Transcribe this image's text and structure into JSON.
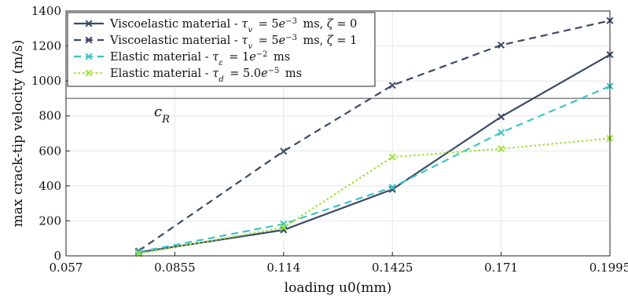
{
  "chart_data": {
    "type": "line",
    "xlabel": "loading u0(mm)",
    "ylabel": "max crack-tip velocity (m/s)",
    "xlim": [
      0.057,
      0.1995
    ],
    "ylim": [
      0,
      1400
    ],
    "xticks": [
      "0.057",
      "0.0855",
      "0.114",
      "0.1425",
      "0.171",
      "0.1995"
    ],
    "yticks": [
      "0",
      "200",
      "400",
      "600",
      "800",
      "1000",
      "1200",
      "1400"
    ],
    "grid": true,
    "legend_position": "top-left",
    "x": [
      0.076,
      0.114,
      0.1425,
      0.171,
      0.1995
    ],
    "series": [
      {
        "name": "Viscoelastic material - τv = 5e−3 ms, ζ = 0",
        "values": [
          20,
          148,
          380,
          795,
          1150
        ],
        "color": "#3b4a66",
        "style": "solid"
      },
      {
        "name": "Viscoelastic material - τv = 5e−3 ms, ζ = 1",
        "values": [
          28,
          598,
          975,
          1205,
          1345
        ],
        "color": "#3b4a66",
        "style": "dashed"
      },
      {
        "name": "Elastic material - τε = 1e−2 ms",
        "values": [
          22,
          182,
          392,
          705,
          970
        ],
        "color": "#3ec4c4",
        "style": "dashed"
      },
      {
        "name": "Elastic material - τd = 5.0e−5 ms",
        "values": [
          12,
          162,
          565,
          612,
          672
        ],
        "color": "#9fe23e",
        "style": "dotted"
      }
    ],
    "reference_line": {
      "y": 900,
      "label": "cR",
      "color": "#808080"
    }
  }
}
